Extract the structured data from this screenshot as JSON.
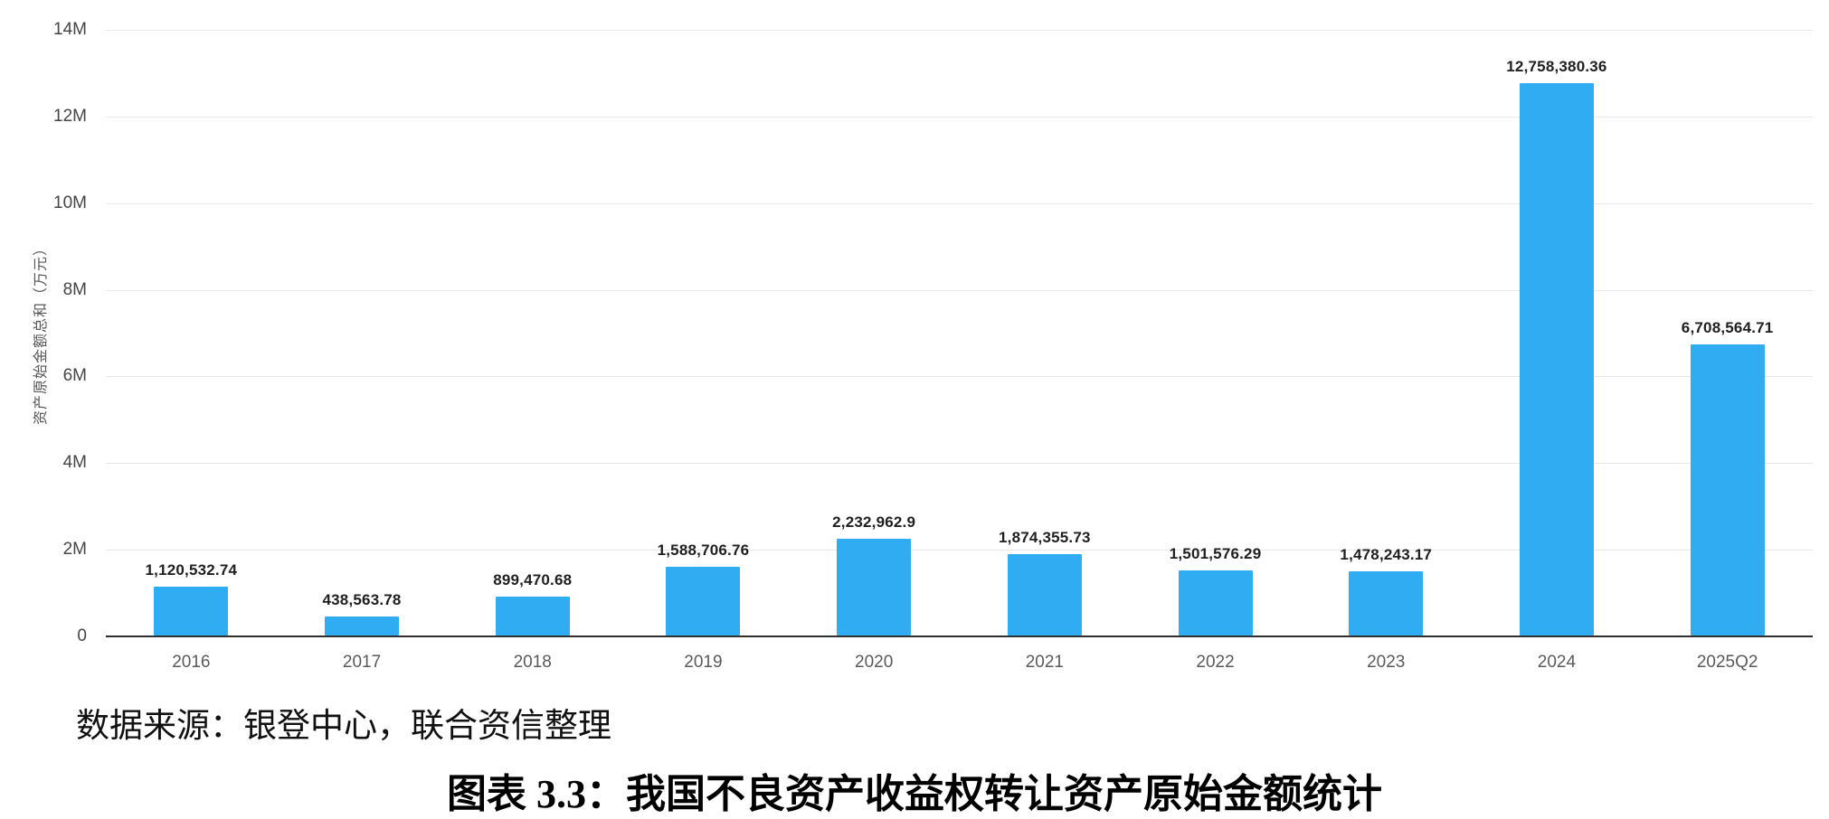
{
  "chart_data": {
    "type": "bar",
    "title": "图表 3.3：我国不良资产收益权转让资产原始金额统计",
    "source": "数据来源：银登中心，联合资信整理",
    "ylabel": "资产原始金额总和（万元）",
    "xlabel": "",
    "categories": [
      "2016",
      "2017",
      "2018",
      "2019",
      "2020",
      "2021",
      "2022",
      "2023",
      "2024",
      "2025Q2"
    ],
    "values": [
      1120532.74,
      438563.78,
      899470.68,
      1588706.76,
      2232962.9,
      1874355.73,
      1501576.29,
      1478243.17,
      12758380.36,
      6708564.71
    ],
    "value_labels": [
      "1,120,532.74",
      "438,563.78",
      "899,470.68",
      "1,588,706.76",
      "2,232,962.9",
      "1,874,355.73",
      "1,501,576.29",
      "1,478,243.17",
      "12,758,380.36",
      "6,708,564.71"
    ],
    "y_ticks_top_to_bottom": [
      "14M",
      "12M",
      "10M",
      "8M",
      "6M",
      "4M",
      "2M",
      "0"
    ],
    "ylim": [
      0,
      14000000
    ],
    "grid": "horizontal",
    "legend": "none",
    "bar_color": "#2facf2",
    "axis_line_color": "#303030",
    "gridline_color": "#e7e7e7"
  }
}
